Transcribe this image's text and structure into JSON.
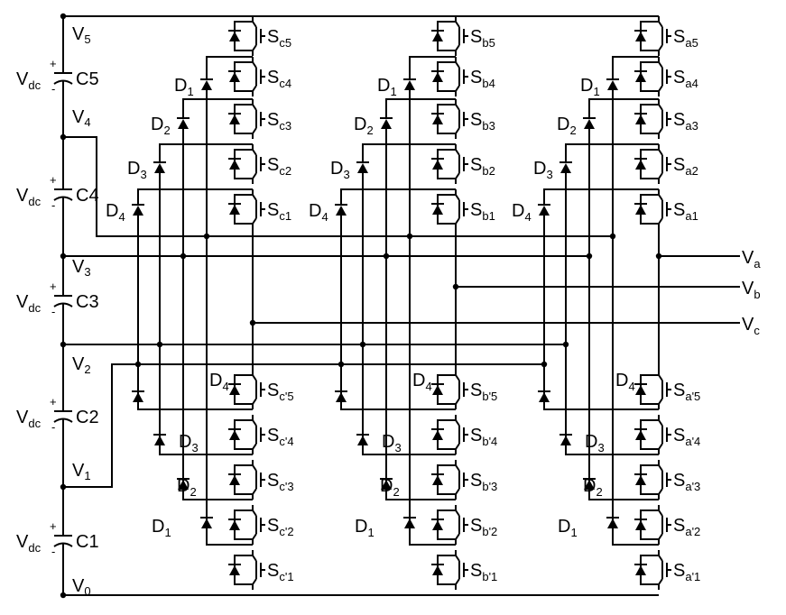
{
  "dc_sources": [
    {
      "capacitor": "C5",
      "label_main": "V",
      "label_sub": "dc"
    },
    {
      "capacitor": "C4",
      "label_main": "V",
      "label_sub": "dc"
    },
    {
      "capacitor": "C3",
      "label_main": "V",
      "label_sub": "dc"
    },
    {
      "capacitor": "C2",
      "label_main": "V",
      "label_sub": "dc"
    },
    {
      "capacitor": "C1",
      "label_main": "V",
      "label_sub": "dc"
    }
  ],
  "capacitor_letter": "C",
  "capacitor_indices": [
    "5",
    "4",
    "3",
    "2",
    "1"
  ],
  "polarity": {
    "plus": "+",
    "minus": "-"
  },
  "nodes": [
    {
      "letter": "V",
      "index": "5"
    },
    {
      "letter": "V",
      "index": "4"
    },
    {
      "letter": "V",
      "index": "3"
    },
    {
      "letter": "V",
      "index": "2"
    },
    {
      "letter": "V",
      "index": "1"
    },
    {
      "letter": "V",
      "index": "0"
    }
  ],
  "outputs": [
    {
      "letter": "V",
      "sub": "a"
    },
    {
      "letter": "V",
      "sub": "b"
    },
    {
      "letter": "V",
      "sub": "c"
    }
  ],
  "legs": [
    {
      "phase": "c",
      "upper": [
        "5",
        "4",
        "3",
        "2",
        "1"
      ],
      "lower": [
        "'5",
        "'4",
        "'3",
        "'2",
        "'1"
      ]
    },
    {
      "phase": "b",
      "upper": [
        "5",
        "4",
        "3",
        "2",
        "1"
      ],
      "lower": [
        "'5",
        "'4",
        "'3",
        "'2",
        "'1"
      ]
    },
    {
      "phase": "a",
      "upper": [
        "5",
        "4",
        "3",
        "2",
        "1"
      ],
      "lower": [
        "'5",
        "'4",
        "'3",
        "'2",
        "'1"
      ]
    }
  ],
  "switch_letter": "S",
  "diode_letter": "D",
  "upper_diodes": [
    "1",
    "2",
    "3",
    "4"
  ],
  "lower_diodes": [
    "4",
    "3",
    "2",
    "1"
  ]
}
